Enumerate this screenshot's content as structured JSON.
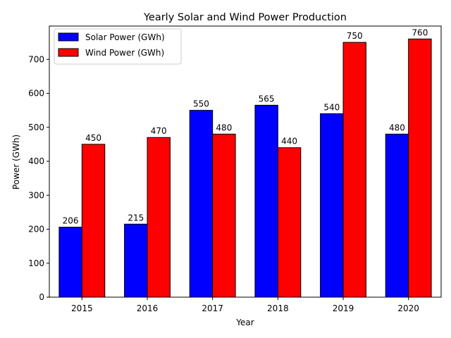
{
  "chart_data": {
    "type": "bar",
    "title": "Yearly Solar and Wind Power Production",
    "xlabel": "Year",
    "ylabel": "Power (GWh)",
    "categories": [
      "2015",
      "2016",
      "2017",
      "2018",
      "2019",
      "2020"
    ],
    "series": [
      {
        "name": "Solar Power (GWh)",
        "color": "#0000ff",
        "values": [
          206,
          215,
          550,
          565,
          540,
          480
        ]
      },
      {
        "name": "Wind Power (GWh)",
        "color": "#ff0000",
        "values": [
          450,
          470,
          480,
          440,
          750,
          760
        ]
      }
    ],
    "yticks": [
      0,
      100,
      200,
      300,
      400,
      500,
      600,
      700
    ],
    "ylim": [
      0,
      798
    ],
    "grid": false,
    "legend": "top-left",
    "data_labels": true
  }
}
